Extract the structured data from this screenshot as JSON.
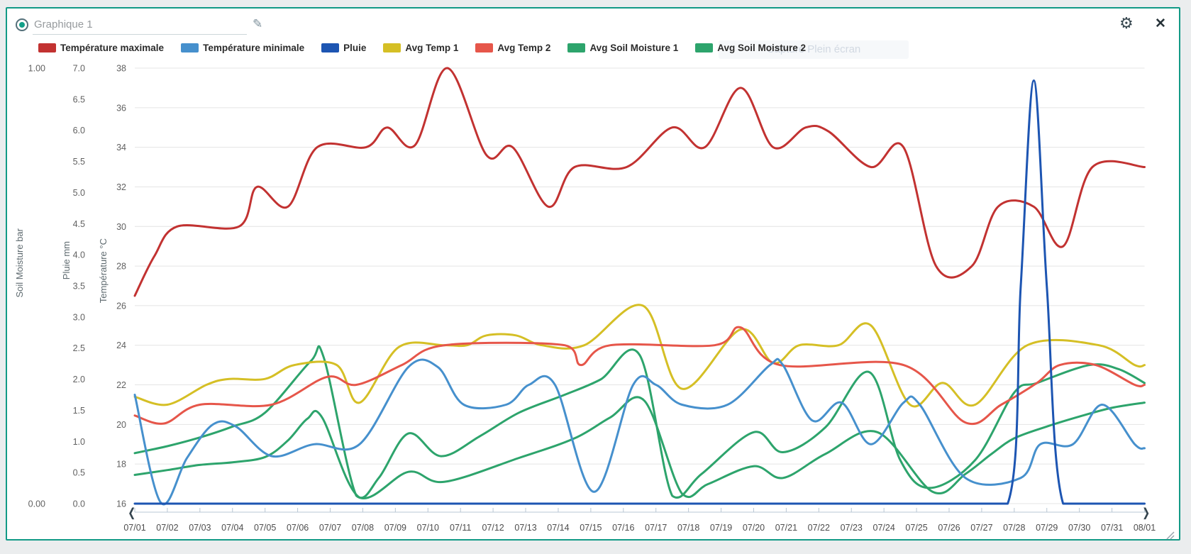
{
  "header": {
    "title_value": "Graphique 1",
    "ghost_tooltip": "Capture Plein écran"
  },
  "panel": {
    "border_color": "#129a86",
    "background": "#ffffff",
    "page_background": "#ebedee"
  },
  "icons": {
    "chart_type": "radio-selected-icon",
    "edit": "pencil-icon",
    "settings": "gear-icon",
    "close": "x-icon",
    "scroll_prev": "chevron-left-icon",
    "scroll_next": "chevron-right-icon",
    "resize": "diagonal-grip-icon"
  },
  "chart_data": {
    "type": "line",
    "smooth": true,
    "grid": "horizontal-only",
    "legend_position": "top",
    "x_labels": [
      "07/01",
      "07/02",
      "07/03",
      "07/04",
      "07/05",
      "07/06",
      "07/07",
      "07/08",
      "07/09",
      "07/10",
      "07/11",
      "07/12",
      "07/13",
      "07/14",
      "07/15",
      "07/16",
      "07/17",
      "07/18",
      "07/19",
      "07/20",
      "07/21",
      "07/22",
      "07/23",
      "07/24",
      "07/25",
      "07/26",
      "07/27",
      "07/28",
      "07/29",
      "07/30",
      "07/31",
      "08/01"
    ],
    "axes": {
      "soil": {
        "title": "Soil Moisture bar",
        "min": 0,
        "max": 1,
        "tick_labels": [
          "1.00",
          "0.00"
        ]
      },
      "pluie": {
        "title": "Pluie mm",
        "min": 0,
        "max": 7,
        "tick_labels": [
          "7.0",
          "6.5",
          "6.0",
          "5.5",
          "5.0",
          "4.5",
          "4.0",
          "3.5",
          "3.0",
          "2.5",
          "2.0",
          "1.5",
          "1.0",
          "0.5",
          "0.0"
        ]
      },
      "temp": {
        "title": "Température °C",
        "min": 16,
        "max": 38,
        "tick_labels": [
          "38",
          "36",
          "34",
          "32",
          "30",
          "28",
          "26",
          "24",
          "22",
          "20",
          "18",
          "16"
        ]
      }
    },
    "series": [
      {
        "name": "Température maximale",
        "color": "#c23231",
        "axis": "temp",
        "points": [
          [
            0,
            26.5
          ],
          [
            0.6,
            28.5
          ],
          [
            1.3,
            30
          ],
          [
            3.2,
            30
          ],
          [
            3.75,
            32
          ],
          [
            4.7,
            31
          ],
          [
            5.6,
            34
          ],
          [
            7.1,
            34
          ],
          [
            7.75,
            35
          ],
          [
            8.6,
            34.1
          ],
          [
            9.6,
            38
          ],
          [
            10.8,
            33.6
          ],
          [
            11.6,
            34
          ],
          [
            12.7,
            31
          ],
          [
            13.5,
            33
          ],
          [
            15.1,
            33
          ],
          [
            16.5,
            35
          ],
          [
            17.5,
            34
          ],
          [
            18.6,
            37
          ],
          [
            19.6,
            34
          ],
          [
            20.6,
            35
          ],
          [
            21.3,
            34.8
          ],
          [
            22.6,
            33
          ],
          [
            23.6,
            34
          ],
          [
            24.6,
            28
          ],
          [
            25.7,
            28
          ],
          [
            26.5,
            31
          ],
          [
            27.6,
            31
          ],
          [
            28.5,
            29
          ],
          [
            29.4,
            33
          ],
          [
            31,
            33
          ]
        ]
      },
      {
        "name": "Température minimale",
        "color": "#4690cd",
        "axis": "temp",
        "points": [
          [
            0,
            21.5
          ],
          [
            0.8,
            16.05
          ],
          [
            1.6,
            18.3
          ],
          [
            2.4,
            20
          ],
          [
            3.1,
            19.9
          ],
          [
            4.2,
            18.4
          ],
          [
            5.5,
            19
          ],
          [
            6.9,
            19
          ],
          [
            8.4,
            22.9
          ],
          [
            9.3,
            22.9
          ],
          [
            10.1,
            21
          ],
          [
            11.4,
            21
          ],
          [
            12.1,
            22
          ],
          [
            12.9,
            22
          ],
          [
            14.1,
            16.6
          ],
          [
            15.3,
            22
          ],
          [
            16,
            22
          ],
          [
            16.8,
            21
          ],
          [
            18.2,
            21
          ],
          [
            19.5,
            23
          ],
          [
            19.9,
            23
          ],
          [
            20.8,
            20.2
          ],
          [
            21.7,
            21.1
          ],
          [
            22.6,
            19
          ],
          [
            23.6,
            21.1
          ],
          [
            24.1,
            21
          ],
          [
            25.5,
            17.3
          ],
          [
            27.2,
            17.3
          ],
          [
            27.8,
            19
          ],
          [
            28.8,
            19
          ],
          [
            29.7,
            21
          ],
          [
            30.7,
            19
          ],
          [
            31,
            18.8
          ]
        ]
      },
      {
        "name": "Pluie",
        "color": "#1d55b2",
        "axis": "pluie",
        "clamp_bottom": true,
        "points": [
          [
            0,
            0
          ],
          [
            4,
            0
          ],
          [
            8,
            0
          ],
          [
            12,
            0
          ],
          [
            16,
            0
          ],
          [
            20,
            0
          ],
          [
            24,
            0
          ],
          [
            26.8,
            0
          ],
          [
            27.2,
            3.5
          ],
          [
            27.6,
            6.8
          ],
          [
            28,
            3.5
          ],
          [
            28.5,
            0
          ],
          [
            30,
            0
          ],
          [
            31,
            0
          ]
        ]
      },
      {
        "name": "Avg Temp 1",
        "color": "#d5bf25",
        "axis": "temp",
        "points": [
          [
            0,
            21.4
          ],
          [
            1,
            21
          ],
          [
            2.2,
            22
          ],
          [
            2.9,
            22.3
          ],
          [
            4,
            22.3
          ],
          [
            4.9,
            23
          ],
          [
            6.2,
            23
          ],
          [
            6.9,
            21.1
          ],
          [
            8.1,
            23.9
          ],
          [
            9.5,
            24
          ],
          [
            10.2,
            24
          ],
          [
            10.8,
            24.5
          ],
          [
            11.7,
            24.5
          ],
          [
            12.5,
            24
          ],
          [
            13.8,
            24
          ],
          [
            15.6,
            26
          ],
          [
            16.8,
            21.8
          ],
          [
            18.6,
            24.8
          ],
          [
            19.6,
            23.1
          ],
          [
            20.4,
            24
          ],
          [
            21.6,
            24
          ],
          [
            22.6,
            25
          ],
          [
            23.8,
            21
          ],
          [
            24.8,
            22.1
          ],
          [
            25.8,
            21
          ],
          [
            27.4,
            24
          ],
          [
            29.6,
            24
          ],
          [
            30.7,
            23
          ],
          [
            31,
            23
          ]
        ]
      },
      {
        "name": "Avg Temp 2",
        "color": "#e6564a",
        "axis": "temp",
        "points": [
          [
            0,
            20.45
          ],
          [
            0.9,
            20.05
          ],
          [
            2,
            21
          ],
          [
            4.2,
            21
          ],
          [
            5.9,
            22.4
          ],
          [
            6.8,
            22
          ],
          [
            8.2,
            23
          ],
          [
            9.5,
            24
          ],
          [
            13.2,
            24
          ],
          [
            13.7,
            23
          ],
          [
            14.6,
            24
          ],
          [
            17.8,
            24
          ],
          [
            18.6,
            24.9
          ],
          [
            19.8,
            23
          ],
          [
            23.6,
            23
          ],
          [
            25.5,
            20.1
          ],
          [
            26.6,
            21
          ],
          [
            27.7,
            22.1
          ],
          [
            28.4,
            23
          ],
          [
            29.5,
            23
          ],
          [
            30.7,
            22
          ],
          [
            31,
            22
          ]
        ]
      },
      {
        "name": "Avg Soil Moisture 1",
        "color": "#2da46c",
        "axis": "soil",
        "clamp_bottom": true,
        "points": [
          [
            0,
            0.116
          ],
          [
            1,
            0.132
          ],
          [
            2,
            0.152
          ],
          [
            3,
            0.177
          ],
          [
            4,
            0.209
          ],
          [
            5.4,
            0.327
          ],
          [
            5.8,
            0.336
          ],
          [
            6.8,
            0.018
          ],
          [
            7.5,
            0.06
          ],
          [
            8.4,
            0.161
          ],
          [
            9.4,
            0.109
          ],
          [
            10.6,
            0.155
          ],
          [
            11.8,
            0.209
          ],
          [
            13.2,
            0.25
          ],
          [
            14.3,
            0.285
          ],
          [
            15.5,
            0.341
          ],
          [
            16.5,
            0.018
          ],
          [
            17.4,
            0.068
          ],
          [
            19,
            0.164
          ],
          [
            19.9,
            0.118
          ],
          [
            21.2,
            0.175
          ],
          [
            22.55,
            0.302
          ],
          [
            23.5,
            0.1
          ],
          [
            24.4,
            0.036
          ],
          [
            25.8,
            0.1
          ],
          [
            27,
            0.255
          ],
          [
            27.7,
            0.277
          ],
          [
            29.3,
            0.318
          ],
          [
            30.2,
            0.309
          ],
          [
            31,
            0.277
          ]
        ]
      },
      {
        "name": "Avg Soil Moisture 2",
        "color": "#2da46c",
        "axis": "soil",
        "clamp_bottom": true,
        "points": [
          [
            0,
            0.066
          ],
          [
            1,
            0.077
          ],
          [
            2,
            0.089
          ],
          [
            3,
            0.095
          ],
          [
            4,
            0.107
          ],
          [
            4.7,
            0.145
          ],
          [
            5.3,
            0.195
          ],
          [
            5.75,
            0.198
          ],
          [
            6.9,
            0.014
          ],
          [
            8.4,
            0.073
          ],
          [
            9.5,
            0.05
          ],
          [
            11.8,
            0.105
          ],
          [
            13.5,
            0.15
          ],
          [
            14.6,
            0.198
          ],
          [
            15.65,
            0.236
          ],
          [
            16.8,
            0.023
          ],
          [
            17.6,
            0.045
          ],
          [
            19,
            0.086
          ],
          [
            19.9,
            0.059
          ],
          [
            21.2,
            0.114
          ],
          [
            22.8,
            0.164
          ],
          [
            24.5,
            0.027
          ],
          [
            25.5,
            0.068
          ],
          [
            26.3,
            0.114
          ],
          [
            27,
            0.15
          ],
          [
            28,
            0.177
          ],
          [
            29,
            0.2
          ],
          [
            30,
            0.22
          ],
          [
            31,
            0.232
          ]
        ]
      }
    ]
  }
}
